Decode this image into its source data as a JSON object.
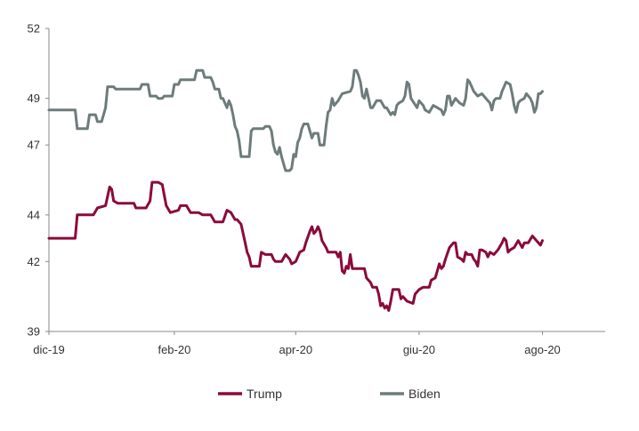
{
  "chart_data": {
    "type": "line",
    "title": "",
    "xlabel": "",
    "ylabel": "",
    "ylim": [
      39,
      52
    ],
    "yticks": [
      39,
      42,
      44,
      47,
      49,
      52
    ],
    "x_tick_labels": [
      {
        "label": "dic-19",
        "day": 0
      },
      {
        "label": "feb-20",
        "day": 62
      },
      {
        "label": "apr-20",
        "day": 122
      },
      {
        "label": "giu-20",
        "day": 183
      },
      {
        "label": "ago-20",
        "day": 244
      }
    ],
    "x_range_days": [
      0,
      275
    ],
    "grid": false,
    "legend_position": "bottom",
    "series": [
      {
        "name": "Trump",
        "color": "#8B0A3A",
        "points": [
          [
            0,
            43.0
          ],
          [
            13,
            43.0
          ],
          [
            14,
            44.0
          ],
          [
            22,
            44.0
          ],
          [
            24,
            44.3
          ],
          [
            28,
            44.4
          ],
          [
            30,
            45.2
          ],
          [
            31,
            45.1
          ],
          [
            32,
            44.6
          ],
          [
            34,
            44.5
          ],
          [
            42,
            44.5
          ],
          [
            43,
            44.3
          ],
          [
            48,
            44.3
          ],
          [
            50,
            44.6
          ],
          [
            51,
            45.4
          ],
          [
            54,
            45.4
          ],
          [
            56,
            45.3
          ],
          [
            58,
            44.4
          ],
          [
            60,
            44.1
          ],
          [
            64,
            44.2
          ],
          [
            65,
            44.4
          ],
          [
            68,
            44.4
          ],
          [
            70,
            44.1
          ],
          [
            74,
            44.1
          ],
          [
            76,
            44.0
          ],
          [
            80,
            44.0
          ],
          [
            82,
            43.7
          ],
          [
            86,
            43.7
          ],
          [
            88,
            44.2
          ],
          [
            90,
            44.1
          ],
          [
            92,
            43.8
          ],
          [
            93,
            43.8
          ],
          [
            95,
            43.6
          ],
          [
            96,
            43.2
          ],
          [
            97,
            42.8
          ],
          [
            98,
            42.4
          ],
          [
            99,
            42.2
          ],
          [
            100,
            41.8
          ],
          [
            104,
            41.8
          ],
          [
            105,
            42.4
          ],
          [
            107,
            42.3
          ],
          [
            110,
            42.3
          ],
          [
            111,
            42.1
          ],
          [
            112,
            42.0
          ],
          [
            115,
            42.0
          ],
          [
            117,
            42.3
          ],
          [
            119,
            42.1
          ],
          [
            120,
            41.9
          ],
          [
            122,
            42.0
          ],
          [
            124,
            42.4
          ],
          [
            126,
            42.5
          ],
          [
            127,
            42.8
          ],
          [
            129,
            43.3
          ],
          [
            130,
            43.5
          ],
          [
            131,
            43.2
          ],
          [
            132,
            43.3
          ],
          [
            133,
            43.5
          ],
          [
            134,
            43.3
          ],
          [
            135,
            42.9
          ],
          [
            137,
            42.6
          ],
          [
            138,
            42.4
          ],
          [
            142,
            42.4
          ],
          [
            143,
            42.2
          ],
          [
            144,
            42.4
          ],
          [
            145,
            41.6
          ],
          [
            146,
            41.5
          ],
          [
            147,
            41.8
          ],
          [
            148,
            41.7
          ],
          [
            149,
            42.3
          ],
          [
            150,
            41.7
          ],
          [
            156,
            41.7
          ],
          [
            157,
            41.3
          ],
          [
            159,
            41.1
          ],
          [
            160,
            40.9
          ],
          [
            162,
            40.9
          ],
          [
            163,
            40.6
          ],
          [
            164,
            40.1
          ],
          [
            165,
            40.2
          ],
          [
            166,
            40.0
          ],
          [
            167,
            40.1
          ],
          [
            168,
            39.9
          ],
          [
            169,
            40.3
          ],
          [
            170,
            40.8
          ],
          [
            173,
            40.8
          ],
          [
            174,
            40.4
          ],
          [
            175,
            40.5
          ],
          [
            177,
            40.3
          ],
          [
            180,
            40.2
          ],
          [
            181,
            40.6
          ],
          [
            183,
            40.8
          ],
          [
            185,
            40.9
          ],
          [
            188,
            40.9
          ],
          [
            189,
            41.2
          ],
          [
            191,
            41.3
          ],
          [
            192,
            41.6
          ],
          [
            193,
            41.9
          ],
          [
            194,
            41.7
          ],
          [
            195,
            41.8
          ],
          [
            196,
            42.1
          ],
          [
            198,
            42.6
          ],
          [
            200,
            42.8
          ],
          [
            201,
            42.8
          ],
          [
            202,
            42.2
          ],
          [
            204,
            42.1
          ],
          [
            205,
            42.0
          ],
          [
            206,
            42.4
          ],
          [
            207,
            42.3
          ],
          [
            209,
            42.3
          ],
          [
            210,
            42.1
          ],
          [
            211,
            42.0
          ],
          [
            212,
            41.8
          ],
          [
            213,
            42.5
          ],
          [
            214,
            42.5
          ],
          [
            216,
            42.4
          ],
          [
            217,
            42.2
          ],
          [
            218,
            42.4
          ],
          [
            220,
            42.3
          ],
          [
            222,
            42.5
          ],
          [
            224,
            42.8
          ],
          [
            225,
            43.0
          ],
          [
            226,
            42.9
          ],
          [
            227,
            42.4
          ],
          [
            228,
            42.5
          ],
          [
            230,
            42.6
          ],
          [
            232,
            42.9
          ],
          [
            234,
            42.6
          ],
          [
            235,
            42.8
          ],
          [
            237,
            42.8
          ],
          [
            239,
            43.1
          ],
          [
            240,
            43.0
          ],
          [
            241,
            42.9
          ],
          [
            242,
            42.8
          ],
          [
            243,
            42.7
          ],
          [
            244,
            42.9
          ]
        ]
      },
      {
        "name": "Biden",
        "color": "#6E7B7B",
        "points": [
          [
            0,
            48.5
          ],
          [
            13,
            48.5
          ],
          [
            14,
            47.7
          ],
          [
            19,
            47.7
          ],
          [
            20,
            48.3
          ],
          [
            23,
            48.3
          ],
          [
            24,
            48.0
          ],
          [
            26,
            48.0
          ],
          [
            27,
            48.3
          ],
          [
            28,
            48.6
          ],
          [
            29,
            49.5
          ],
          [
            32,
            49.5
          ],
          [
            33,
            49.4
          ],
          [
            45,
            49.4
          ],
          [
            46,
            49.6
          ],
          [
            49,
            49.6
          ],
          [
            50,
            49.1
          ],
          [
            53,
            49.1
          ],
          [
            54,
            49.0
          ],
          [
            56,
            49.0
          ],
          [
            57,
            49.1
          ],
          [
            61,
            49.1
          ],
          [
            62,
            49.6
          ],
          [
            64,
            49.6
          ],
          [
            65,
            49.8
          ],
          [
            72,
            49.8
          ],
          [
            73,
            50.2
          ],
          [
            76,
            50.2
          ],
          [
            77,
            49.9
          ],
          [
            80,
            49.9
          ],
          [
            81,
            49.7
          ],
          [
            82,
            49.4
          ],
          [
            84,
            49.4
          ],
          [
            85,
            49.0
          ],
          [
            86,
            49.0
          ],
          [
            87,
            48.8
          ],
          [
            88,
            48.6
          ],
          [
            89,
            48.9
          ],
          [
            90,
            48.7
          ],
          [
            91,
            48.3
          ],
          [
            92,
            47.8
          ],
          [
            93,
            47.6
          ],
          [
            94,
            47.2
          ],
          [
            95,
            46.5
          ],
          [
            99,
            46.5
          ],
          [
            100,
            47.6
          ],
          [
            101,
            47.7
          ],
          [
            106,
            47.7
          ],
          [
            107,
            47.8
          ],
          [
            109,
            47.8
          ],
          [
            110,
            47.6
          ],
          [
            111,
            47.0
          ],
          [
            112,
            46.7
          ],
          [
            113,
            46.6
          ],
          [
            114,
            46.9
          ],
          [
            115,
            46.5
          ],
          [
            116,
            46.2
          ],
          [
            117,
            45.9
          ],
          [
            119,
            45.9
          ],
          [
            120,
            46.0
          ],
          [
            121,
            46.6
          ],
          [
            122,
            46.5
          ],
          [
            123,
            47.1
          ],
          [
            124,
            47.3
          ],
          [
            125,
            47.7
          ],
          [
            126,
            47.9
          ],
          [
            128,
            47.9
          ],
          [
            129,
            47.6
          ],
          [
            130,
            47.3
          ],
          [
            131,
            47.5
          ],
          [
            133,
            47.5
          ],
          [
            134,
            47.0
          ],
          [
            136,
            47.0
          ],
          [
            137,
            47.8
          ],
          [
            138,
            48.4
          ],
          [
            139,
            48.5
          ],
          [
            140,
            49.0
          ],
          [
            141,
            48.7
          ],
          [
            143,
            48.9
          ],
          [
            145,
            49.2
          ],
          [
            149,
            49.3
          ],
          [
            150,
            49.5
          ],
          [
            151,
            50.2
          ],
          [
            152,
            50.2
          ],
          [
            153,
            50.0
          ],
          [
            154,
            49.7
          ],
          [
            155,
            49.1
          ],
          [
            156,
            49.0
          ],
          [
            157,
            49.4
          ],
          [
            158,
            49.0
          ],
          [
            159,
            48.6
          ],
          [
            160,
            48.6
          ],
          [
            162,
            48.9
          ],
          [
            164,
            48.9
          ],
          [
            166,
            48.6
          ],
          [
            167,
            48.6
          ],
          [
            169,
            48.3
          ],
          [
            170,
            48.4
          ],
          [
            171,
            48.3
          ],
          [
            172,
            48.7
          ],
          [
            173,
            48.8
          ],
          [
            175,
            48.9
          ],
          [
            176,
            49.1
          ],
          [
            177,
            49.7
          ],
          [
            178,
            49.6
          ],
          [
            179,
            49.0
          ],
          [
            182,
            48.6
          ],
          [
            183,
            48.9
          ],
          [
            185,
            48.7
          ],
          [
            186,
            48.5
          ],
          [
            188,
            48.4
          ],
          [
            190,
            48.7
          ],
          [
            192,
            48.6
          ],
          [
            194,
            48.5
          ],
          [
            195,
            48.3
          ],
          [
            196,
            48.5
          ],
          [
            197,
            49.1
          ],
          [
            198,
            49.1
          ],
          [
            199,
            48.7
          ],
          [
            201,
            49.0
          ],
          [
            203,
            48.8
          ],
          [
            205,
            48.7
          ],
          [
            206,
            49.0
          ],
          [
            207,
            49.8
          ],
          [
            208,
            49.7
          ],
          [
            210,
            49.3
          ],
          [
            212,
            49.1
          ],
          [
            214,
            49.2
          ],
          [
            216,
            49.0
          ],
          [
            218,
            48.8
          ],
          [
            219,
            48.5
          ],
          [
            220,
            48.9
          ],
          [
            221,
            49.0
          ],
          [
            223,
            49.0
          ],
          [
            224,
            49.3
          ],
          [
            225,
            49.5
          ],
          [
            226,
            49.7
          ],
          [
            228,
            49.6
          ],
          [
            229,
            49.2
          ],
          [
            230,
            48.7
          ],
          [
            231,
            48.4
          ],
          [
            232,
            48.8
          ],
          [
            233,
            48.9
          ],
          [
            235,
            49.0
          ],
          [
            236,
            49.2
          ],
          [
            238,
            49.0
          ],
          [
            239,
            48.8
          ],
          [
            240,
            48.4
          ],
          [
            241,
            48.6
          ],
          [
            242,
            49.2
          ],
          [
            243,
            49.2
          ],
          [
            244,
            49.3
          ]
        ]
      }
    ]
  },
  "legend": {
    "trump_label": "Trump",
    "biden_label": "Biden"
  }
}
